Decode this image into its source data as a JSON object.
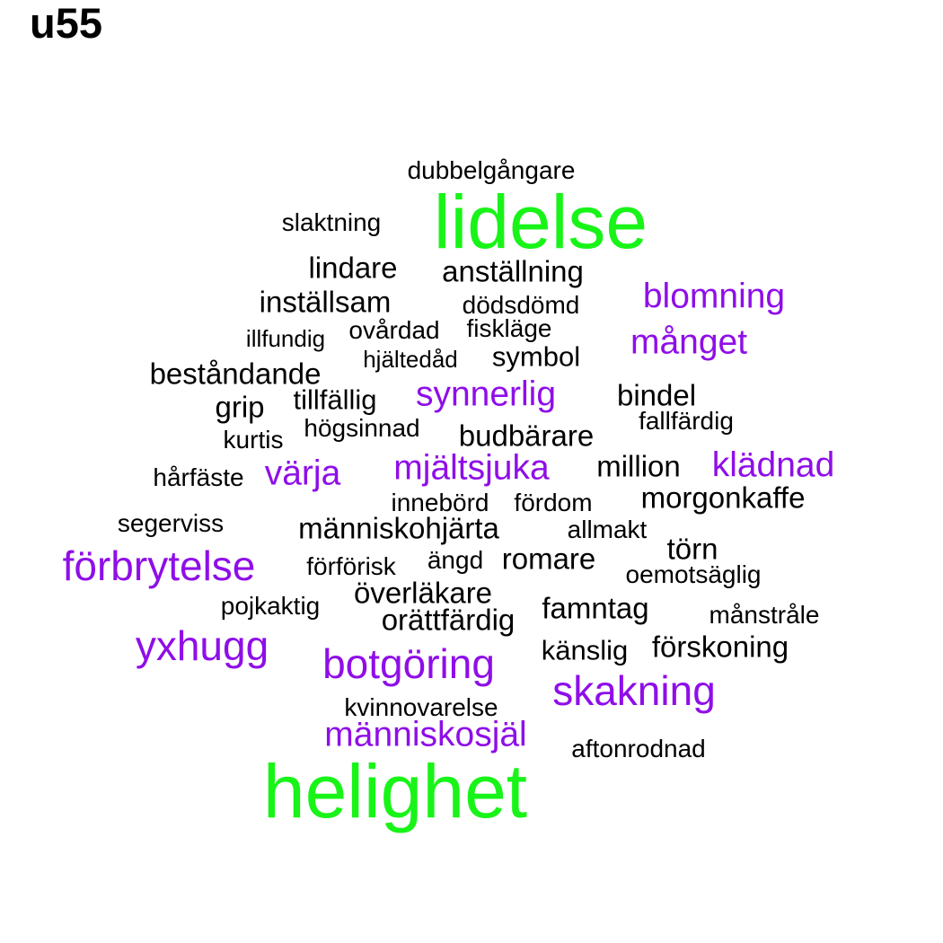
{
  "title": "u55",
  "colors": {
    "green": "#18f418",
    "purple": "#8f0ee8",
    "black": "#000000"
  },
  "words": [
    {
      "id": "dubbelgangare",
      "text": "dubbelgångare",
      "color": "black"
    },
    {
      "id": "lidelse",
      "text": "lidelse",
      "color": "green"
    },
    {
      "id": "slaktning",
      "text": "slaktning",
      "color": "black"
    },
    {
      "id": "lindare",
      "text": "lindare",
      "color": "black"
    },
    {
      "id": "anstallning",
      "text": "anställning",
      "color": "black"
    },
    {
      "id": "blomning",
      "text": "blomning",
      "color": "purple"
    },
    {
      "id": "installsam",
      "text": "inställsam",
      "color": "black"
    },
    {
      "id": "dodsdomd",
      "text": "dödsdömd",
      "color": "black"
    },
    {
      "id": "ovardad",
      "text": "ovårdad",
      "color": "black"
    },
    {
      "id": "fisklage",
      "text": "fiskläge",
      "color": "black"
    },
    {
      "id": "illfundig",
      "text": "illfundig",
      "color": "black"
    },
    {
      "id": "manget",
      "text": "månget",
      "color": "purple"
    },
    {
      "id": "hjaltedad",
      "text": "hjältedåd",
      "color": "black"
    },
    {
      "id": "symbol",
      "text": "symbol",
      "color": "black"
    },
    {
      "id": "bestandande",
      "text": "beståndande",
      "color": "black"
    },
    {
      "id": "synnerlig",
      "text": "synnerlig",
      "color": "purple"
    },
    {
      "id": "bindel",
      "text": "bindel",
      "color": "black"
    },
    {
      "id": "grip",
      "text": "grip",
      "color": "black"
    },
    {
      "id": "tillfallig",
      "text": "tillfällig",
      "color": "black"
    },
    {
      "id": "fallfardig",
      "text": "fallfärdig",
      "color": "black"
    },
    {
      "id": "hogsinnad",
      "text": "högsinnad",
      "color": "black"
    },
    {
      "id": "kurtis",
      "text": "kurtis",
      "color": "black"
    },
    {
      "id": "budbarare",
      "text": "budbärare",
      "color": "black"
    },
    {
      "id": "mjaltsjuka",
      "text": "mjältsjuka",
      "color": "purple"
    },
    {
      "id": "million",
      "text": "million",
      "color": "black"
    },
    {
      "id": "kladnad",
      "text": "klädnad",
      "color": "purple"
    },
    {
      "id": "harfaste",
      "text": "hårfäste",
      "color": "black"
    },
    {
      "id": "varja",
      "text": "värja",
      "color": "purple"
    },
    {
      "id": "innebord",
      "text": "innebörd",
      "color": "black"
    },
    {
      "id": "fordom",
      "text": "fördom",
      "color": "black"
    },
    {
      "id": "morgonkaffe",
      "text": "morgonkaffe",
      "color": "black"
    },
    {
      "id": "segerviss",
      "text": "segerviss",
      "color": "black"
    },
    {
      "id": "manniskohjarta",
      "text": "människohjärta",
      "color": "black"
    },
    {
      "id": "allmakt",
      "text": "allmakt",
      "color": "black"
    },
    {
      "id": "torn",
      "text": "törn",
      "color": "black"
    },
    {
      "id": "forbrytelse",
      "text": "förbrytelse",
      "color": "purple"
    },
    {
      "id": "forforisk",
      "text": "förförisk",
      "color": "black"
    },
    {
      "id": "angd",
      "text": "ängd",
      "color": "black"
    },
    {
      "id": "romare",
      "text": "romare",
      "color": "black"
    },
    {
      "id": "oemotsaglig",
      "text": "oemotsäglig",
      "color": "black"
    },
    {
      "id": "overlakare",
      "text": "överläkare",
      "color": "black"
    },
    {
      "id": "pojkaktig",
      "text": "pojkaktig",
      "color": "black"
    },
    {
      "id": "famntag",
      "text": "famntag",
      "color": "black"
    },
    {
      "id": "orattfardig",
      "text": "orättfärdig",
      "color": "black"
    },
    {
      "id": "manstrale",
      "text": "månstråle",
      "color": "black"
    },
    {
      "id": "yxhugg",
      "text": "yxhugg",
      "color": "purple"
    },
    {
      "id": "forskoning",
      "text": "förskoning",
      "color": "black"
    },
    {
      "id": "botgoring",
      "text": "botgöring",
      "color": "purple"
    },
    {
      "id": "kanslig",
      "text": "känslig",
      "color": "black"
    },
    {
      "id": "skakning",
      "text": "skakning",
      "color": "purple"
    },
    {
      "id": "kvinnovarelse",
      "text": "kvinnovarelse",
      "color": "black"
    },
    {
      "id": "manniskosjal",
      "text": "människosjäl",
      "color": "purple"
    },
    {
      "id": "aftonrodnad",
      "text": "aftonrodnad",
      "color": "black"
    },
    {
      "id": "helighet",
      "text": "helighet",
      "color": "green"
    }
  ]
}
